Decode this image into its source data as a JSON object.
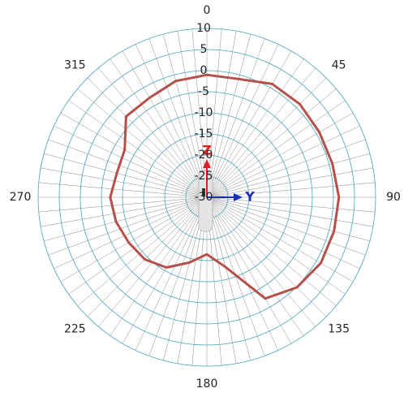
{
  "chart_data": {
    "type": "polar",
    "x": [
      0,
      15,
      30,
      45,
      60,
      75,
      90,
      105,
      120,
      135,
      150,
      165,
      180,
      195,
      210,
      225,
      240,
      255,
      270,
      285,
      300,
      315,
      330,
      345
    ],
    "values": [
      -1,
      -1,
      1,
      1.2,
      0.8,
      0.8,
      1.3,
      1.2,
      1.2,
      0.2,
      -2.3,
      -12.9,
      -16.5,
      -14,
      -10.8,
      -9.2,
      -8.6,
      -7.7,
      -7.1,
      -7.9,
      -7.5,
      -2.9,
      -2.8,
      -1.5
    ],
    "color": "#b5504b",
    "rlim": [
      -30,
      10
    ],
    "rticks": [
      -30,
      -25,
      -20,
      -15,
      -10,
      -5,
      0,
      5,
      10
    ],
    "angle_ticks": [
      0,
      45,
      90,
      135,
      180,
      225,
      270,
      315
    ],
    "annotations": [
      "Z",
      "Y"
    ]
  }
}
